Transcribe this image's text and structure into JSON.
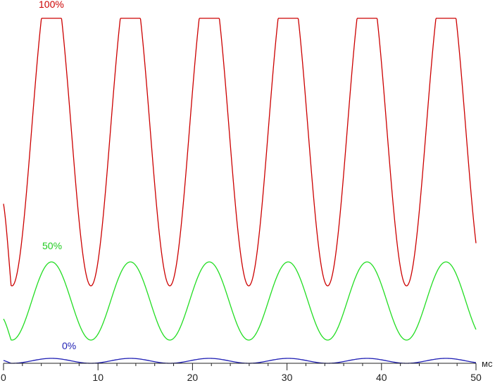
{
  "chart_data": {
    "type": "line",
    "title": "",
    "xlabel": "мс",
    "ylabel": "",
    "xlim": [
      0,
      50
    ],
    "ylim": [
      0,
      100
    ],
    "grid": false,
    "x_ticks": [
      0,
      10,
      20,
      30,
      40,
      50
    ],
    "x_tick_labels": [
      "0",
      "10",
      "20",
      "30",
      "40",
      "50"
    ],
    "series": [
      {
        "name": "100%",
        "color": "#cc0000",
        "period_ms": 8.35,
        "phase_ms": 0.9,
        "min": 22.0,
        "max": 98.0,
        "flat_top": true,
        "end_value": 45.3,
        "start_value": 45.3
      },
      {
        "name": "50%",
        "color": "#22dd22",
        "period_ms": 8.35,
        "phase_ms": 0.9,
        "min": 6.6,
        "max": 28.8,
        "flat_top": false,
        "start_value": 12.6,
        "end_value": 14.0
      },
      {
        "name": "0%",
        "color": "#1f1fb4",
        "period_ms": 8.35,
        "phase_ms": 0.9,
        "min": 0.0,
        "max": 1.4,
        "flat_top": false,
        "start_value": 0.8,
        "end_value": 1.1
      }
    ]
  }
}
